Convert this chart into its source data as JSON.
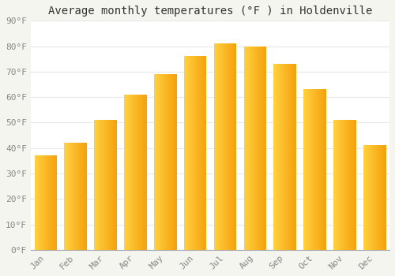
{
  "title": "Average monthly temperatures (°F ) in Holdenville",
  "months": [
    "Jan",
    "Feb",
    "Mar",
    "Apr",
    "May",
    "Jun",
    "Jul",
    "Aug",
    "Sep",
    "Oct",
    "Nov",
    "Dec"
  ],
  "values": [
    37,
    42,
    51,
    61,
    69,
    76,
    81,
    80,
    73,
    63,
    51,
    41
  ],
  "bar_color_left": "#FFCC44",
  "bar_color_right": "#F5A000",
  "ylim": [
    0,
    90
  ],
  "yticks": [
    0,
    10,
    20,
    30,
    40,
    50,
    60,
    70,
    80,
    90
  ],
  "ytick_labels": [
    "0°F",
    "10°F",
    "20°F",
    "30°F",
    "40°F",
    "50°F",
    "60°F",
    "70°F",
    "80°F",
    "90°F"
  ],
  "background_color": "#ffffff",
  "fig_background_color": "#f5f5f0",
  "grid_color": "#e8e8e8",
  "title_fontsize": 10,
  "tick_fontsize": 8,
  "tick_color": "#888888",
  "bar_width": 0.75,
  "bar_gap_color": "#ffffff"
}
